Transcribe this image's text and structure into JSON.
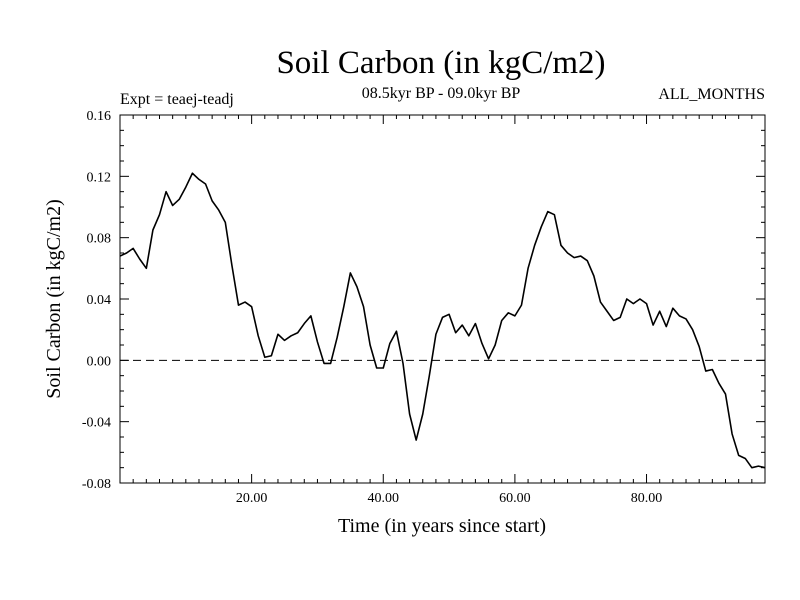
{
  "chart_data": {
    "type": "line",
    "title": "Soil Carbon (in kgC/m2)",
    "subtitle": "08.5kyr BP - 09.0kyr BP",
    "left_note": "Expt = teaej-teadj",
    "right_note": "ALL_MONTHS",
    "xlabel": "Time (in years since start)",
    "ylabel": "Soil Carbon (in kgC/m2)",
    "xlim": [
      0,
      98
    ],
    "ylim": [
      -0.08,
      0.16
    ],
    "x_ticks": [
      20,
      40,
      60,
      80
    ],
    "x_tick_labels": [
      "20.00",
      "40.00",
      "60.00",
      "80.00"
    ],
    "y_ticks": [
      -0.08,
      -0.04,
      0.0,
      0.04,
      0.08,
      0.12,
      0.16
    ],
    "y_tick_labels": [
      "-0.08",
      "-0.04",
      "0.00",
      "0.04",
      "0.08",
      "0.12",
      "0.16"
    ],
    "reference_line": {
      "y": 0.0,
      "style": "dashed"
    },
    "series": [
      {
        "name": "Soil Carbon",
        "x": [
          0,
          1,
          2,
          3,
          4,
          5,
          6,
          7,
          8,
          9,
          10,
          11,
          12,
          13,
          14,
          15,
          16,
          17,
          18,
          19,
          20,
          21,
          22,
          23,
          24,
          25,
          26,
          27,
          28,
          29,
          30,
          31,
          32,
          33,
          34,
          35,
          36,
          37,
          38,
          39,
          40,
          41,
          42,
          43,
          44,
          45,
          46,
          47,
          48,
          49,
          50,
          51,
          52,
          53,
          54,
          55,
          56,
          57,
          58,
          59,
          60,
          61,
          62,
          63,
          64,
          65,
          66,
          67,
          68,
          69,
          70,
          71,
          72,
          73,
          74,
          75,
          76,
          77,
          78,
          79,
          80,
          81,
          82,
          83,
          84,
          85,
          86,
          87,
          88,
          89,
          90,
          91,
          92,
          93,
          94,
          95,
          96,
          97,
          98
        ],
        "values": [
          0.068,
          0.07,
          0.073,
          0.066,
          0.06,
          0.085,
          0.095,
          0.11,
          0.101,
          0.105,
          0.113,
          0.122,
          0.118,
          0.115,
          0.104,
          0.098,
          0.09,
          0.062,
          0.036,
          0.038,
          0.035,
          0.016,
          0.002,
          0.003,
          0.017,
          0.013,
          0.016,
          0.018,
          0.024,
          0.029,
          0.012,
          -0.002,
          -0.002,
          0.015,
          0.035,
          0.057,
          0.048,
          0.035,
          0.01,
          -0.005,
          -0.005,
          0.011,
          0.019,
          -0.002,
          -0.035,
          -0.052,
          -0.035,
          -0.01,
          0.017,
          0.028,
          0.03,
          0.018,
          0.023,
          0.016,
          0.024,
          0.011,
          0.001,
          0.01,
          0.026,
          0.031,
          0.029,
          0.036,
          0.06,
          0.075,
          0.087,
          0.097,
          0.095,
          0.075,
          0.07,
          0.067,
          0.068,
          0.065,
          0.055,
          0.038,
          0.032,
          0.026,
          0.028,
          0.04,
          0.037,
          0.04,
          0.037,
          0.023,
          0.032,
          0.022,
          0.034,
          0.029,
          0.027,
          0.02,
          0.009,
          -0.007,
          -0.006,
          -0.015,
          -0.022,
          -0.048,
          -0.062,
          -0.064,
          -0.07,
          -0.069,
          -0.07
        ]
      }
    ]
  }
}
